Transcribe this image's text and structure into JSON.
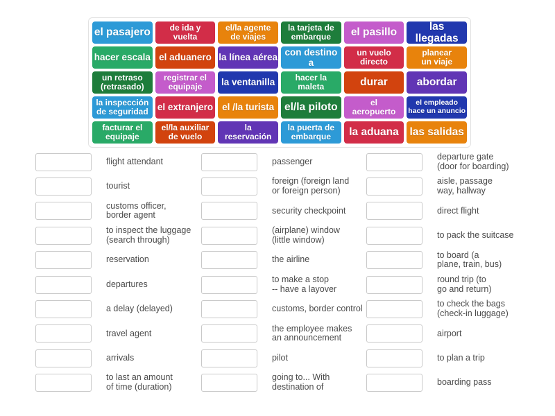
{
  "activity": {
    "type": "match-up"
  },
  "palette": [
    "#2d9ad7",
    "#d22d48",
    "#e8830c",
    "#1e7d3b",
    "#c45ccb",
    "#2138ae",
    "#29aa67",
    "#d2430e",
    "#6135b5"
  ],
  "tiles": [
    {
      "label": "el pasajero",
      "size": "lg"
    },
    {
      "label": "de ida y\nvuelta",
      "size": "md"
    },
    {
      "label": "el/la agente\nde viajes",
      "size": "md"
    },
    {
      "label": "la tarjeta de\nembarque",
      "size": "md"
    },
    {
      "label": "el pasillo",
      "size": "lg"
    },
    {
      "label": "las llegadas",
      "size": "lg"
    },
    {
      "label": "hacer escala",
      "size": "md2"
    },
    {
      "label": "el aduanero",
      "size": "md2"
    },
    {
      "label": "la línea aérea",
      "size": "md2"
    },
    {
      "label": "con destino a",
      "size": "md2"
    },
    {
      "label": "un vuelo\ndirecto",
      "size": "md"
    },
    {
      "label": "planear\nun viaje",
      "size": "md"
    },
    {
      "label": "un retraso\n(retrasado)",
      "size": "md"
    },
    {
      "label": "registrar el\nequipaje",
      "size": "md"
    },
    {
      "label": "la ventanilla",
      "size": "md2"
    },
    {
      "label": "hacer la\nmaleta",
      "size": "md"
    },
    {
      "label": "durar",
      "size": "lg"
    },
    {
      "label": "abordar",
      "size": "lg"
    },
    {
      "label": "la inspección\nde seguridad",
      "size": "md"
    },
    {
      "label": "el extranjero",
      "size": "md2"
    },
    {
      "label": "el /la turista",
      "size": "md2"
    },
    {
      "label": "el/la piloto",
      "size": "lg"
    },
    {
      "label": "el\naeropuerto",
      "size": "md"
    },
    {
      "label": "el empleado\nhace un anuncio",
      "size": "sm"
    },
    {
      "label": "facturar el\nequipaje",
      "size": "md"
    },
    {
      "label": "el/la auxiliar\nde vuelo",
      "size": "md"
    },
    {
      "label": "la\nreservación",
      "size": "md"
    },
    {
      "label": "la puerta de\nembarque",
      "size": "md"
    },
    {
      "label": "la aduana",
      "size": "lg"
    },
    {
      "label": "las salidas",
      "size": "lg"
    }
  ],
  "matches": {
    "columns": [
      {
        "items": [
          "flight attendant",
          "tourist",
          "customs officer,\nborder agent",
          "to inspect the luggage\n(search through)",
          "reservation",
          "departures",
          "a delay (delayed)",
          "travel agent",
          "arrivals",
          "to last an amount\nof time (duration)"
        ]
      },
      {
        "items": [
          "passenger",
          "foreign (foreign land\nor foreign person)",
          "security checkpoint",
          "(airplane) window\n(little window)",
          "the airline",
          "to make a stop\n-- have a layover",
          "customs, border control",
          "the employee makes\nan announcement",
          "pilot",
          "going to... With\ndestination of"
        ]
      },
      {
        "items": [
          "departure gate\n(door for boarding)",
          "aisle, passage\nway, hallway",
          "direct flight",
          "to pack the suitcase",
          "to board (a\nplane, train, bus)",
          "round trip (to\ngo and return)",
          "to check the bags\n(check-in luggage)",
          "airport",
          "to plan a trip",
          "boarding pass"
        ]
      }
    ]
  }
}
